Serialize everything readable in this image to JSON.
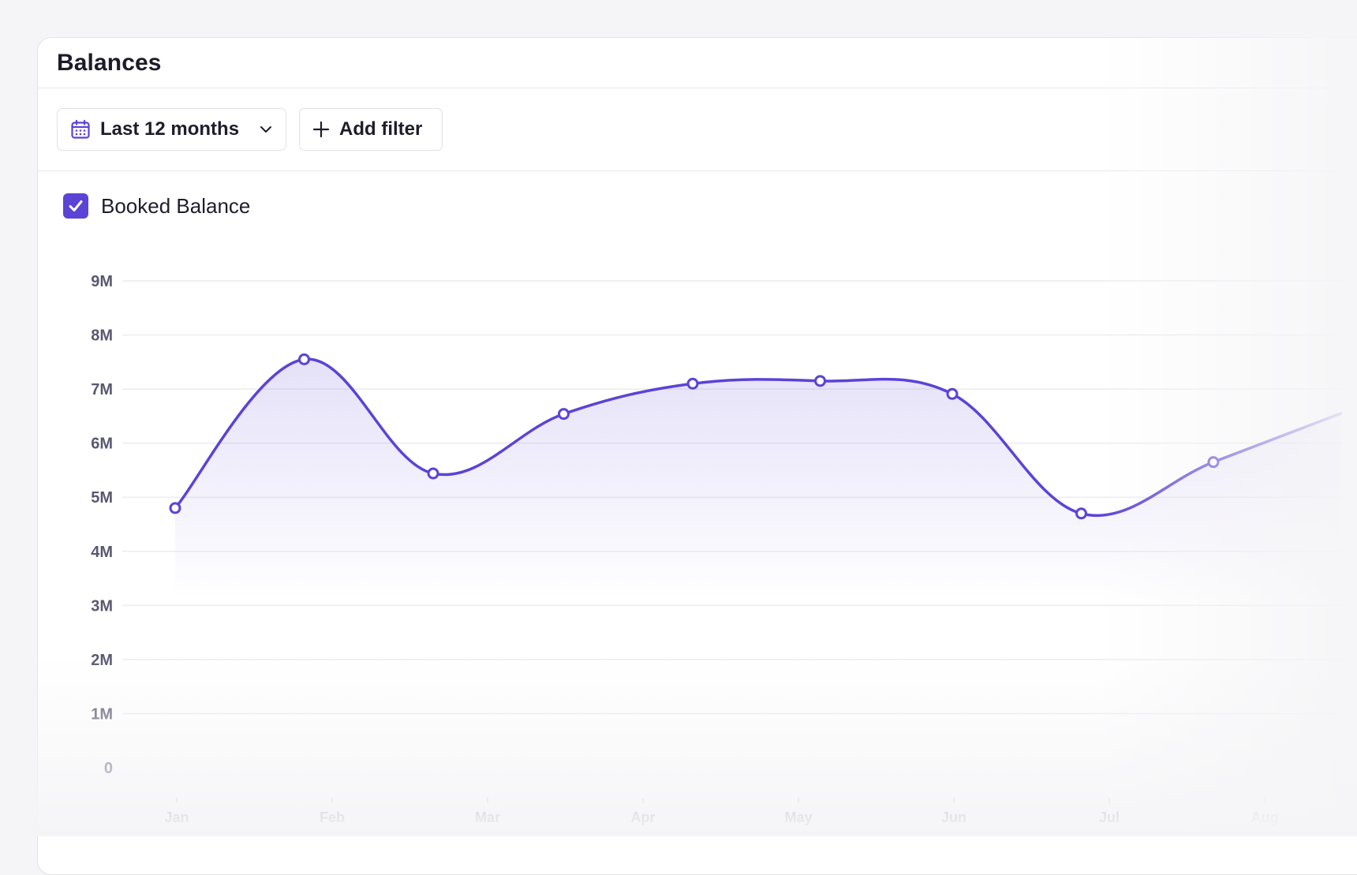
{
  "card": {
    "title": "Balances"
  },
  "toolbar": {
    "range_label": "Last 12 months",
    "add_filter_label": "Add filter"
  },
  "legend": {
    "series_label": "Booked Balance",
    "checked": true
  },
  "colors": {
    "accent": "#5b43d6",
    "grid": "#ececf1",
    "tick_text": "#5a5870"
  },
  "icons": {
    "range": "calendar-icon",
    "dropdown": "chevron-down-icon",
    "add": "plus-icon",
    "check": "check-icon"
  },
  "chart_data": {
    "type": "area",
    "title": "",
    "xlabel": "",
    "ylabel": "",
    "ylim": [
      0,
      9000000
    ],
    "y_ticks": [
      0,
      1000000,
      2000000,
      3000000,
      4000000,
      5000000,
      6000000,
      7000000,
      8000000,
      9000000
    ],
    "y_tick_labels": [
      "0",
      "1M",
      "2M",
      "3M",
      "4M",
      "5M",
      "6M",
      "7M",
      "8M",
      "9M"
    ],
    "x_tick_labels": [
      "Jan",
      "Feb",
      "Mar",
      "Apr",
      "May",
      "Jun",
      "Jul",
      "Aug"
    ],
    "grid": true,
    "series": [
      {
        "name": "Booked Balance",
        "points": [
          {
            "x": 0.0,
            "y": 4800000
          },
          {
            "x": 0.83,
            "y": 7550000
          },
          {
            "x": 1.66,
            "y": 5440000
          },
          {
            "x": 2.5,
            "y": 6540000
          },
          {
            "x": 3.33,
            "y": 7100000
          },
          {
            "x": 4.15,
            "y": 7150000
          },
          {
            "x": 5.0,
            "y": 6910000
          },
          {
            "x": 5.83,
            "y": 4700000
          },
          {
            "x": 6.68,
            "y": 5650000
          },
          {
            "x": 7.5,
            "y": 6550000
          }
        ]
      }
    ]
  }
}
